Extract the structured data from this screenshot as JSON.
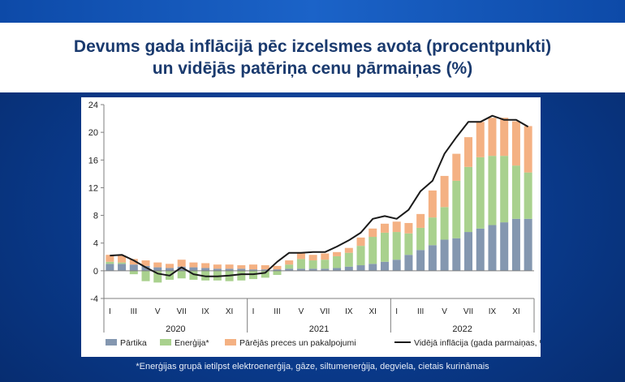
{
  "title_lines": [
    "Devums gada inflācijā pēc izcelsmes avota (procentpunkti)",
    "un vidējās patēriņa cenu pārmaiņas (%)"
  ],
  "footnote": "*Enerģijas grupā ietilpst elektroenerģija, gāze, siltumenerģija, degviela, cietais kurināmais",
  "colors": {
    "food": "#8497b0",
    "energy": "#a9d18e",
    "other": "#f4b183",
    "line": "#1a1a1a"
  },
  "chart_data": {
    "type": "bar",
    "stacked": true,
    "title": "",
    "xlabel": "",
    "ylabel": "",
    "ylim": [
      -4,
      24
    ],
    "yticks": [
      -4,
      0,
      4,
      8,
      12,
      16,
      20,
      24
    ],
    "grid": false,
    "legend_position": "bottom",
    "month_tick_labels": [
      "I",
      "",
      "III",
      "",
      "V",
      "",
      "VII",
      "",
      "IX",
      "",
      "XI",
      "",
      "I",
      "",
      "III",
      "",
      "V",
      "",
      "VII",
      "",
      "IX",
      "",
      "XI",
      "",
      "I",
      "",
      "III",
      "",
      "V",
      "",
      "VII",
      "",
      "IX",
      "",
      "XI",
      ""
    ],
    "years": [
      "2020",
      "2021",
      "2022"
    ],
    "categories": [
      "2020-01",
      "2020-02",
      "2020-03",
      "2020-04",
      "2020-05",
      "2020-06",
      "2020-07",
      "2020-08",
      "2020-09",
      "2020-10",
      "2020-11",
      "2020-12",
      "2021-01",
      "2021-02",
      "2021-03",
      "2021-04",
      "2021-05",
      "2021-06",
      "2021-07",
      "2021-08",
      "2021-09",
      "2021-10",
      "2021-11",
      "2021-12",
      "2022-01",
      "2022-02",
      "2022-03",
      "2022-04",
      "2022-05",
      "2022-06",
      "2022-07",
      "2022-08",
      "2022-09",
      "2022-10",
      "2022-11",
      "2022-12"
    ],
    "series": [
      {
        "name": "Pārtika",
        "kind": "bar",
        "color_key": "food",
        "values": [
          1.0,
          1.0,
          0.9,
          0.7,
          0.5,
          0.4,
          0.6,
          0.5,
          0.4,
          0.3,
          0.3,
          0.3,
          0.2,
          0.2,
          0.2,
          0.3,
          0.3,
          0.3,
          0.3,
          0.4,
          0.6,
          0.8,
          1.0,
          1.3,
          1.6,
          2.3,
          3.0,
          3.7,
          4.5,
          4.7,
          5.6,
          6.1,
          6.6,
          7.0,
          7.5,
          7.5
        ]
      },
      {
        "name": "Enerģija*",
        "kind": "bar",
        "color_key": "energy",
        "values": [
          0.3,
          0.2,
          -0.5,
          -1.5,
          -1.7,
          -1.3,
          -1.1,
          -1.3,
          -1.4,
          -1.4,
          -1.5,
          -1.4,
          -1.2,
          -1.0,
          -0.6,
          0.6,
          1.4,
          1.2,
          1.3,
          1.7,
          2.0,
          2.8,
          3.9,
          4.2,
          4.0,
          3.1,
          3.2,
          4.0,
          4.7,
          8.3,
          9.4,
          10.3,
          10.0,
          9.6,
          7.7,
          6.7
        ]
      },
      {
        "name": "Pārējās preces un pakalpojumi",
        "kind": "bar",
        "color_key": "other",
        "values": [
          1.0,
          1.0,
          0.8,
          0.8,
          0.7,
          0.6,
          1.0,
          0.7,
          0.7,
          0.6,
          0.6,
          0.5,
          0.7,
          0.6,
          0.5,
          0.6,
          0.9,
          0.8,
          0.9,
          0.6,
          0.7,
          1.2,
          1.2,
          1.3,
          1.5,
          1.5,
          2.0,
          3.9,
          4.5,
          3.9,
          4.3,
          5.1,
          5.5,
          5.5,
          6.4,
          6.7
        ]
      },
      {
        "name": "Vidējā inflācija (gada parmaiņas, %)",
        "kind": "line",
        "color_key": "line",
        "values": [
          2.2,
          2.3,
          1.5,
          0.5,
          -0.4,
          -0.7,
          0.5,
          -0.5,
          -0.8,
          -0.8,
          -0.7,
          -0.5,
          -0.5,
          -0.3,
          1.3,
          2.6,
          2.6,
          2.7,
          2.7,
          3.5,
          4.4,
          5.5,
          7.5,
          7.9,
          7.5,
          8.8,
          11.5,
          13.0,
          16.9,
          19.3,
          21.5,
          21.5,
          22.4,
          21.8,
          21.8,
          20.8
        ]
      }
    ]
  }
}
